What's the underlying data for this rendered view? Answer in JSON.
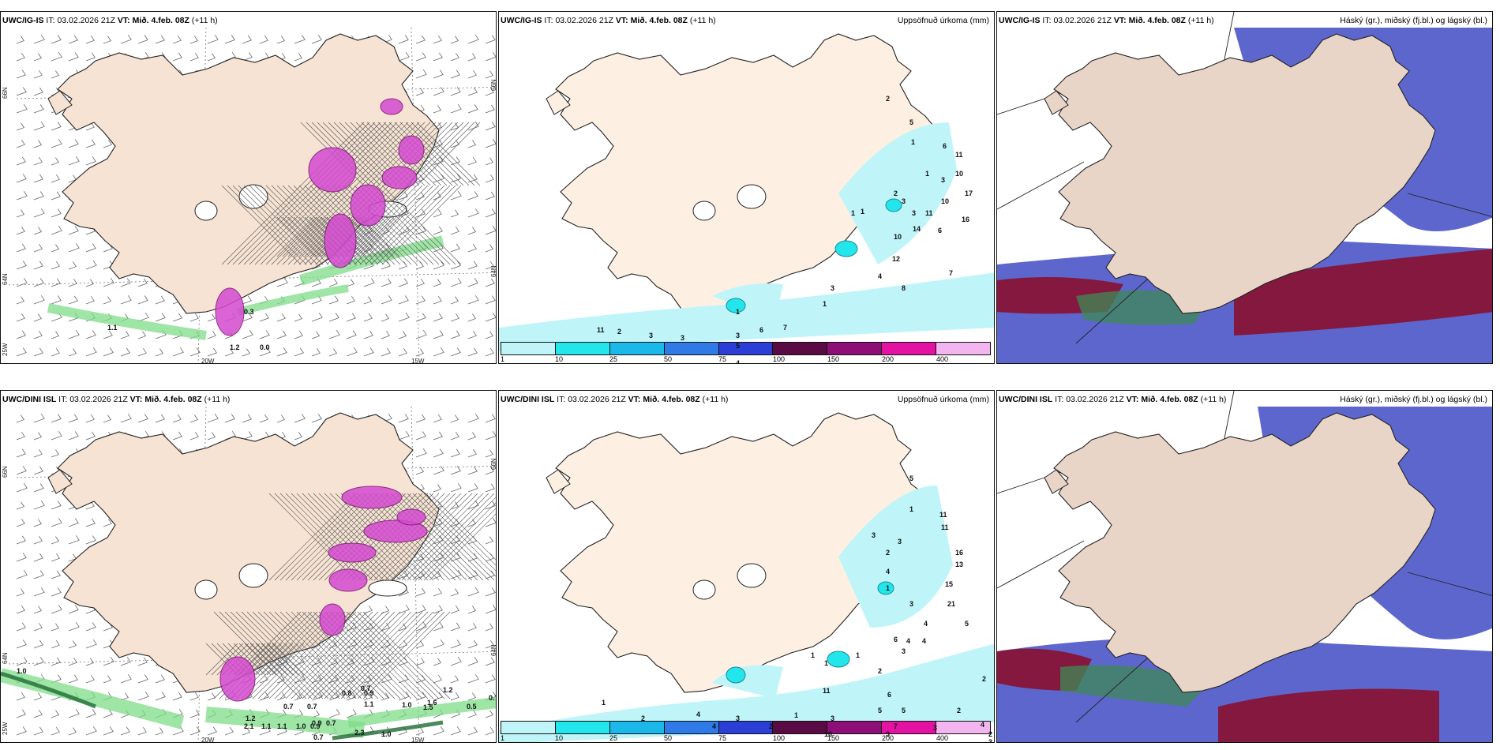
{
  "header": {
    "it_prefix": "IT:",
    "it_value": "03.02.2026 21Z",
    "vt_prefix": "VT:",
    "vt_value": "Mið. 4.feb. 08Z",
    "lead": "(+11 h)"
  },
  "models": {
    "top": "UWC/IG-IS",
    "bottom": "UWC/DINI ISL"
  },
  "titles": {
    "precip": "Uppsöfnuð úrkoma (mm)",
    "cloud": "Háský (gr.), miðský (fj.bl.) og lágský (bl.)"
  },
  "axis": {
    "lat_labels": [
      "66N",
      "64N",
      "25W"
    ],
    "lon_labels": [
      "20W",
      "15W"
    ],
    "right_lat_labels": [
      "66N",
      "64N"
    ]
  },
  "colorbar": {
    "labels": [
      "1",
      "10",
      "25",
      "50",
      "75",
      "100",
      "150",
      "200",
      "400"
    ],
    "colors": [
      "#bff5f8",
      "#22e6ec",
      "#1bb9ea",
      "#2f7ae6",
      "#2b3fd6",
      "#5a0b44",
      "#8c0e76",
      "#e412a3",
      "#f3b5f0"
    ]
  },
  "wind_panels": {
    "top_values": [
      "1.1",
      "1.2",
      "0.3",
      "0.0"
    ],
    "bottom_values": [
      "1.0",
      "0.7",
      "0.7",
      "0.8",
      "0.7",
      "0.9",
      "1.2",
      "1.6",
      "1.0",
      "1.5",
      "0.5",
      "0.7",
      "0.9",
      "1.1",
      "1.2",
      "2.1",
      "1.1",
      "1.1",
      "1.0",
      "0.9",
      "0.7",
      "2.3",
      "1.0",
      "0.7"
    ]
  },
  "precip_panels": {
    "top_values": [
      "2",
      "5",
      "6",
      "11",
      "1",
      "1",
      "3",
      "10",
      "17",
      "10",
      "3",
      "11",
      "16",
      "6",
      "3",
      "2",
      "1",
      "1",
      "14",
      "10",
      "12",
      "7",
      "8",
      "4",
      "3",
      "1",
      "1",
      "3",
      "6",
      "7",
      "5",
      "4",
      "3",
      "3",
      "2",
      "11"
    ],
    "bottom_values": [
      "5",
      "1",
      "3",
      "11",
      "11",
      "16",
      "13",
      "4",
      "15",
      "21",
      "2",
      "3",
      "1",
      "3",
      "5",
      "4",
      "4",
      "1",
      "1",
      "6",
      "4",
      "11",
      "6",
      "5",
      "5",
      "3",
      "3",
      "7",
      "10",
      "3",
      "2",
      "2",
      "2",
      "4",
      "3",
      "3",
      "2",
      "1",
      "1",
      "2",
      "3",
      "4",
      "4",
      "2",
      "1"
    ]
  },
  "palette": {
    "land": "#f6e3d3",
    "coast": "#222222",
    "cloud_high_blue": "#4b55c8",
    "cloud_mid_red": "#8a1030",
    "cloud_low_green": "#3f8a55",
    "precip_light": "#bff5f8",
    "precip_mid": "#22e6ec",
    "wind_magenta": "#d44ad0",
    "wind_green": "#7edc88"
  }
}
